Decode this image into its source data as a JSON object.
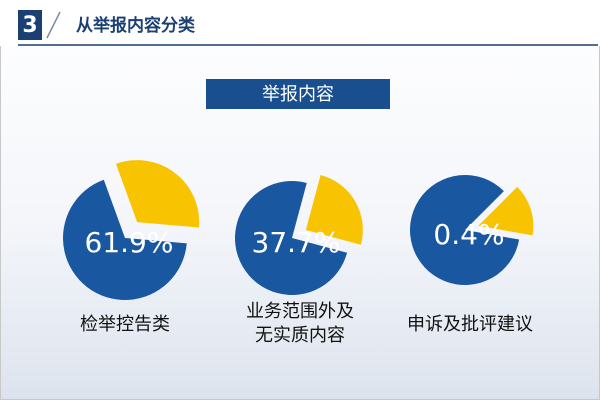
{
  "header": {
    "number": "3",
    "title": "从举报内容分类"
  },
  "panel_title": "举报内容",
  "items": [
    {
      "percent": "61.9%",
      "label": [
        "检举控告类"
      ]
    },
    {
      "percent": "37.7%",
      "label": [
        "业务范围外及",
        "无实质内容"
      ]
    },
    {
      "percent": "0.4%",
      "label": [
        "申诉及批评建议"
      ]
    }
  ]
}
